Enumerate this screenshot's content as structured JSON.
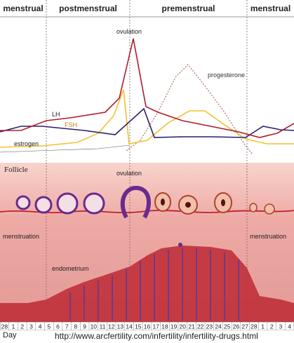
{
  "phases": [
    {
      "label": "menstrual"
    },
    {
      "label": "postmenstrual"
    },
    {
      "label": "premenstrual"
    },
    {
      "label": "menstrual"
    }
  ],
  "hormones": {
    "ovulation": "ovulation",
    "progesterone": "progesterone",
    "lh": "LH",
    "fsh": "FSH",
    "estrogen": "estrogen"
  },
  "follicle_panel": {
    "title": "Follicle",
    "ovulation": "ovulation",
    "menstruation_left": "menstruation",
    "menstruation_right": "menstruation",
    "endometrium": "endometrium"
  },
  "colors": {
    "lh": "#b01c2c",
    "fsh": "#f4c030",
    "estrogen": "#2a1f6e",
    "progesterone": "#b0705a",
    "tissue": "#e8a2a0",
    "follicle": "#6a2a8e",
    "endometrium": "#c0303a"
  },
  "days": [
    "28",
    "1",
    "2",
    "3",
    "4",
    "5",
    "6",
    "7",
    "8",
    "9",
    "10",
    "11",
    "12",
    "13",
    "14",
    "15",
    "16",
    "17",
    "18",
    "19",
    "20",
    "21",
    "22",
    "23",
    "24",
    "25",
    "26",
    "27",
    "28",
    "1",
    "2",
    "3",
    "4"
  ],
  "footer": {
    "day_label": "Day",
    "url": "http://www.arcfertility.com/infertility/infertility-drugs.html"
  }
}
